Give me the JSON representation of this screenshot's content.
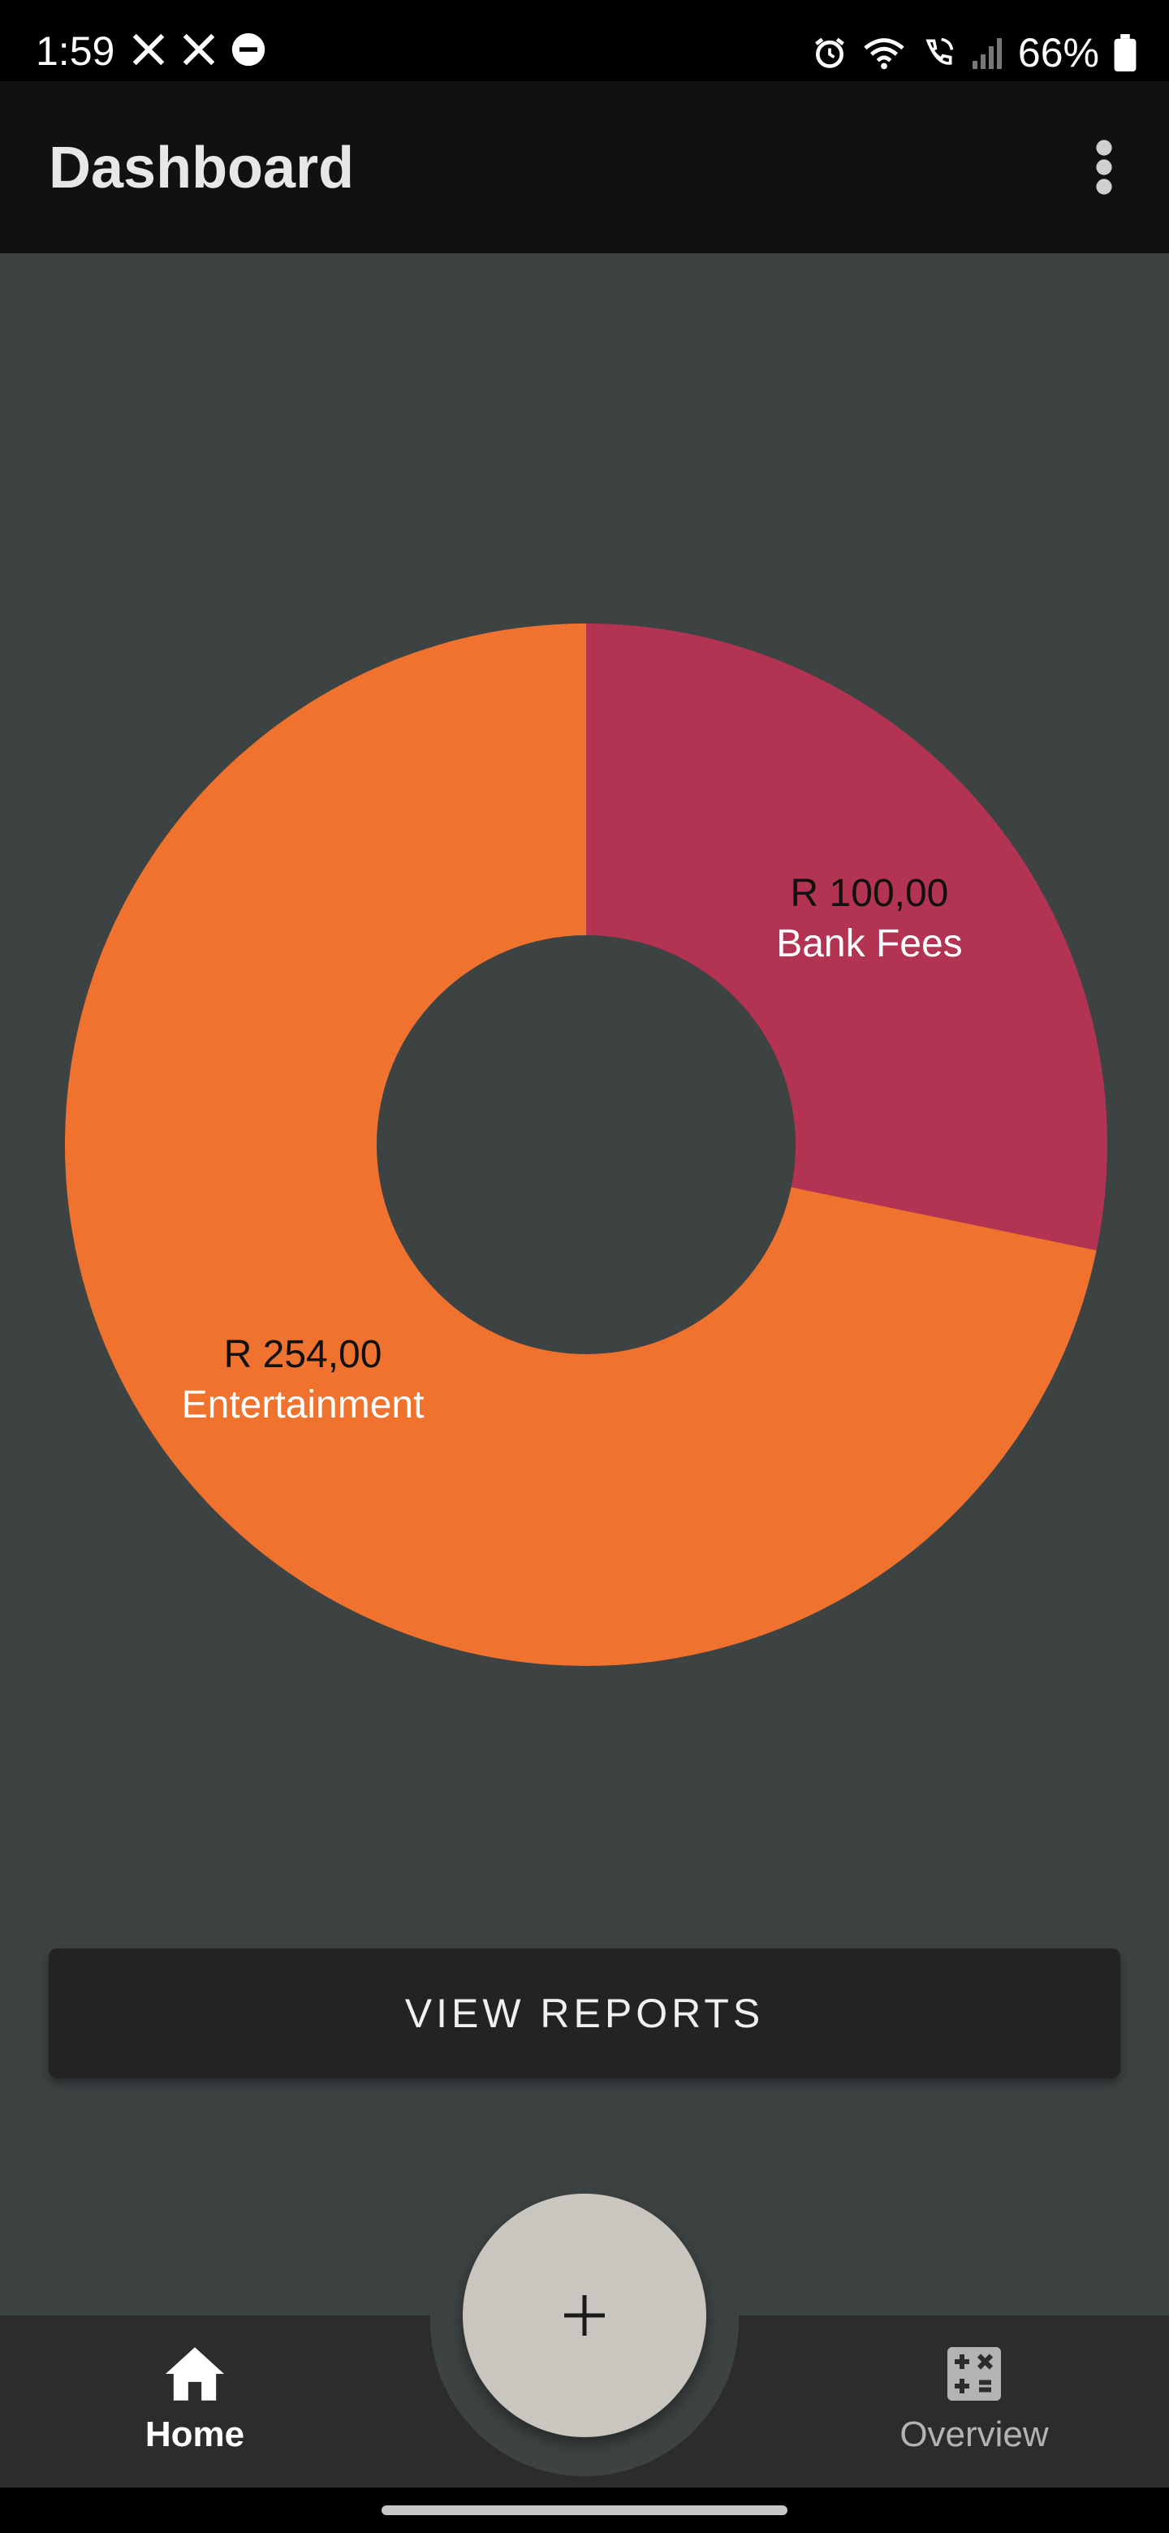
{
  "status_bar": {
    "time": "1:59",
    "battery": "66%",
    "icons": [
      "x-logo-icon",
      "x-logo-icon",
      "do-not-disturb-icon",
      "alarm-icon",
      "wifi-icon",
      "wifi-calling-icon",
      "signal-icon",
      "battery-icon"
    ]
  },
  "app_bar": {
    "title": "Dashboard",
    "menu_icon": "more-vert-icon"
  },
  "chart_data": {
    "type": "pie",
    "donut": true,
    "slices": [
      {
        "value_label": "R 100,00",
        "label": "Bank Fees",
        "value": 100.0,
        "color": "#b23352"
      },
      {
        "value_label": "R 254,00",
        "label": "Entertainment",
        "value": 254.0,
        "color": "#ef722f"
      }
    ],
    "start_angle_deg": 0,
    "direction": "clockwise",
    "background_color": "#3d4243"
  },
  "actions": {
    "view_reports": "VIEW REPORTS",
    "fab_icon": "plus-icon"
  },
  "bottom_nav": {
    "items": [
      {
        "label": "Home",
        "icon": "home-icon",
        "active": true
      },
      {
        "label": "Overview",
        "icon": "calculator-icon",
        "active": false
      }
    ]
  },
  "colors": {
    "background": "#3d4243",
    "app_bar": "#111111",
    "button": "#232323",
    "fab": "#c9c5bf",
    "nav": "#2c2c2c"
  }
}
